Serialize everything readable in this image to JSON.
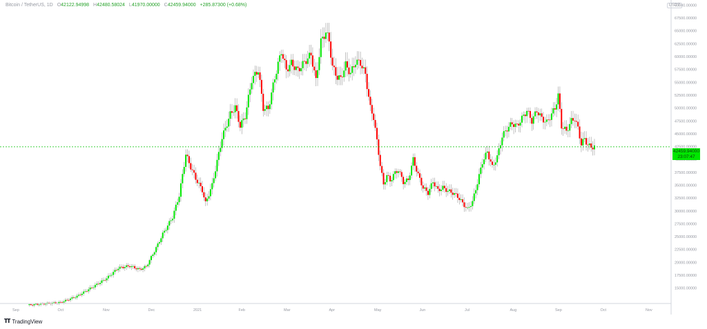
{
  "legend": {
    "symbol": "Bitcoin / TetherUS, 1D",
    "open_label": "O",
    "open": "42122.94998",
    "high_label": "H",
    "high": "42480.58024",
    "low_label": "L",
    "low": "41970.00000",
    "close_label": "C",
    "close": "42459.94000",
    "change": "+285.87300 (+0.68%)"
  },
  "currency": "USDT",
  "price_tag": {
    "price": "42459.94000",
    "countdown": "23:07:47"
  },
  "brand": "TradingView",
  "colors": {
    "up": "#00e600",
    "down": "#ff0000",
    "wick": "#9a9a9a",
    "last_price_line": "#00c000"
  },
  "chart_data": {
    "type": "candlestick",
    "ylim": [
      12000,
      71000
    ],
    "y_ticks": [
      "15000.00000",
      "17500.00000",
      "20000.00000",
      "22500.00000",
      "25000.00000",
      "27500.00000",
      "30000.00000",
      "32500.00000",
      "35000.00000",
      "37500.00000",
      "40000.00000",
      "42500.00000",
      "45000.00000",
      "47500.00000",
      "50000.00000",
      "52500.00000",
      "55000.00000",
      "57500.00000",
      "60000.00000",
      "62500.00000",
      "65000.00000",
      "67500.00000",
      "70000.00000"
    ],
    "x_ticks": [
      "Sep",
      "Oct",
      "Nov",
      "Dec",
      "2021",
      "Feb",
      "Mar",
      "Apr",
      "May",
      "Jun",
      "Jul",
      "Aug",
      "Sep",
      "Oct",
      "Nov"
    ],
    "last_price": 42459.94,
    "grid": false,
    "price_path": [
      [
        0,
        11700
      ],
      [
        20,
        12200
      ],
      [
        30,
        13400
      ],
      [
        40,
        15300
      ],
      [
        48,
        16900
      ],
      [
        55,
        18900
      ],
      [
        62,
        19300
      ],
      [
        68,
        18600
      ],
      [
        72,
        19200
      ],
      [
        78,
        22800
      ],
      [
        82,
        25500
      ],
      [
        88,
        28800
      ],
      [
        92,
        33000
      ],
      [
        96,
        41000
      ],
      [
        99,
        38500
      ],
      [
        102,
        36300
      ],
      [
        106,
        34000
      ],
      [
        108,
        31500
      ],
      [
        112,
        35000
      ],
      [
        118,
        44200
      ],
      [
        123,
        48800
      ],
      [
        126,
        50200
      ],
      [
        129,
        46500
      ],
      [
        132,
        48400
      ],
      [
        136,
        55500
      ],
      [
        140,
        57400
      ],
      [
        143,
        50000
      ],
      [
        146,
        49800
      ],
      [
        150,
        55900
      ],
      [
        154,
        61100
      ],
      [
        157,
        57400
      ],
      [
        160,
        58700
      ],
      [
        164,
        57300
      ],
      [
        168,
        58900
      ],
      [
        172,
        60400
      ],
      [
        175,
        55300
      ],
      [
        178,
        62900
      ],
      [
        181,
        64800
      ],
      [
        183,
        63000
      ],
      [
        185,
        58000
      ],
      [
        188,
        56000
      ],
      [
        190,
        55700
      ],
      [
        193,
        58400
      ],
      [
        196,
        56700
      ],
      [
        199,
        59000
      ],
      [
        202,
        58800
      ],
      [
        205,
        56500
      ],
      [
        208,
        50000
      ],
      [
        210,
        48200
      ],
      [
        212,
        43500
      ],
      [
        214,
        39000
      ],
      [
        216,
        35000
      ],
      [
        218,
        37000
      ],
      [
        220,
        35800
      ],
      [
        222,
        37000
      ],
      [
        225,
        38000
      ],
      [
        228,
        35600
      ],
      [
        231,
        36000
      ],
      [
        234,
        40000
      ],
      [
        237,
        37000
      ],
      [
        240,
        34500
      ],
      [
        243,
        33500
      ],
      [
        246,
        35700
      ],
      [
        249,
        34000
      ],
      [
        252,
        34500
      ],
      [
        255,
        33900
      ],
      [
        258,
        33500
      ],
      [
        261,
        32800
      ],
      [
        264,
        31500
      ],
      [
        267,
        30300
      ],
      [
        270,
        31800
      ],
      [
        273,
        35500
      ],
      [
        276,
        39500
      ],
      [
        279,
        41500
      ],
      [
        282,
        38500
      ],
      [
        285,
        40500
      ],
      [
        288,
        44500
      ],
      [
        291,
        46000
      ],
      [
        294,
        47000
      ],
      [
        297,
        46500
      ],
      [
        300,
        48000
      ],
      [
        303,
        49500
      ],
      [
        306,
        47500
      ],
      [
        309,
        49500
      ],
      [
        312,
        48000
      ],
      [
        315,
        47200
      ],
      [
        318,
        48800
      ],
      [
        320,
        50000
      ],
      [
        322,
        52400
      ],
      [
        324,
        46500
      ],
      [
        327,
        45500
      ],
      [
        330,
        47500
      ],
      [
        332,
        48000
      ],
      [
        334,
        46000
      ],
      [
        336,
        43000
      ],
      [
        338,
        44000
      ],
      [
        340,
        42800
      ],
      [
        342,
        42400
      ],
      [
        344,
        42500
      ]
    ]
  }
}
